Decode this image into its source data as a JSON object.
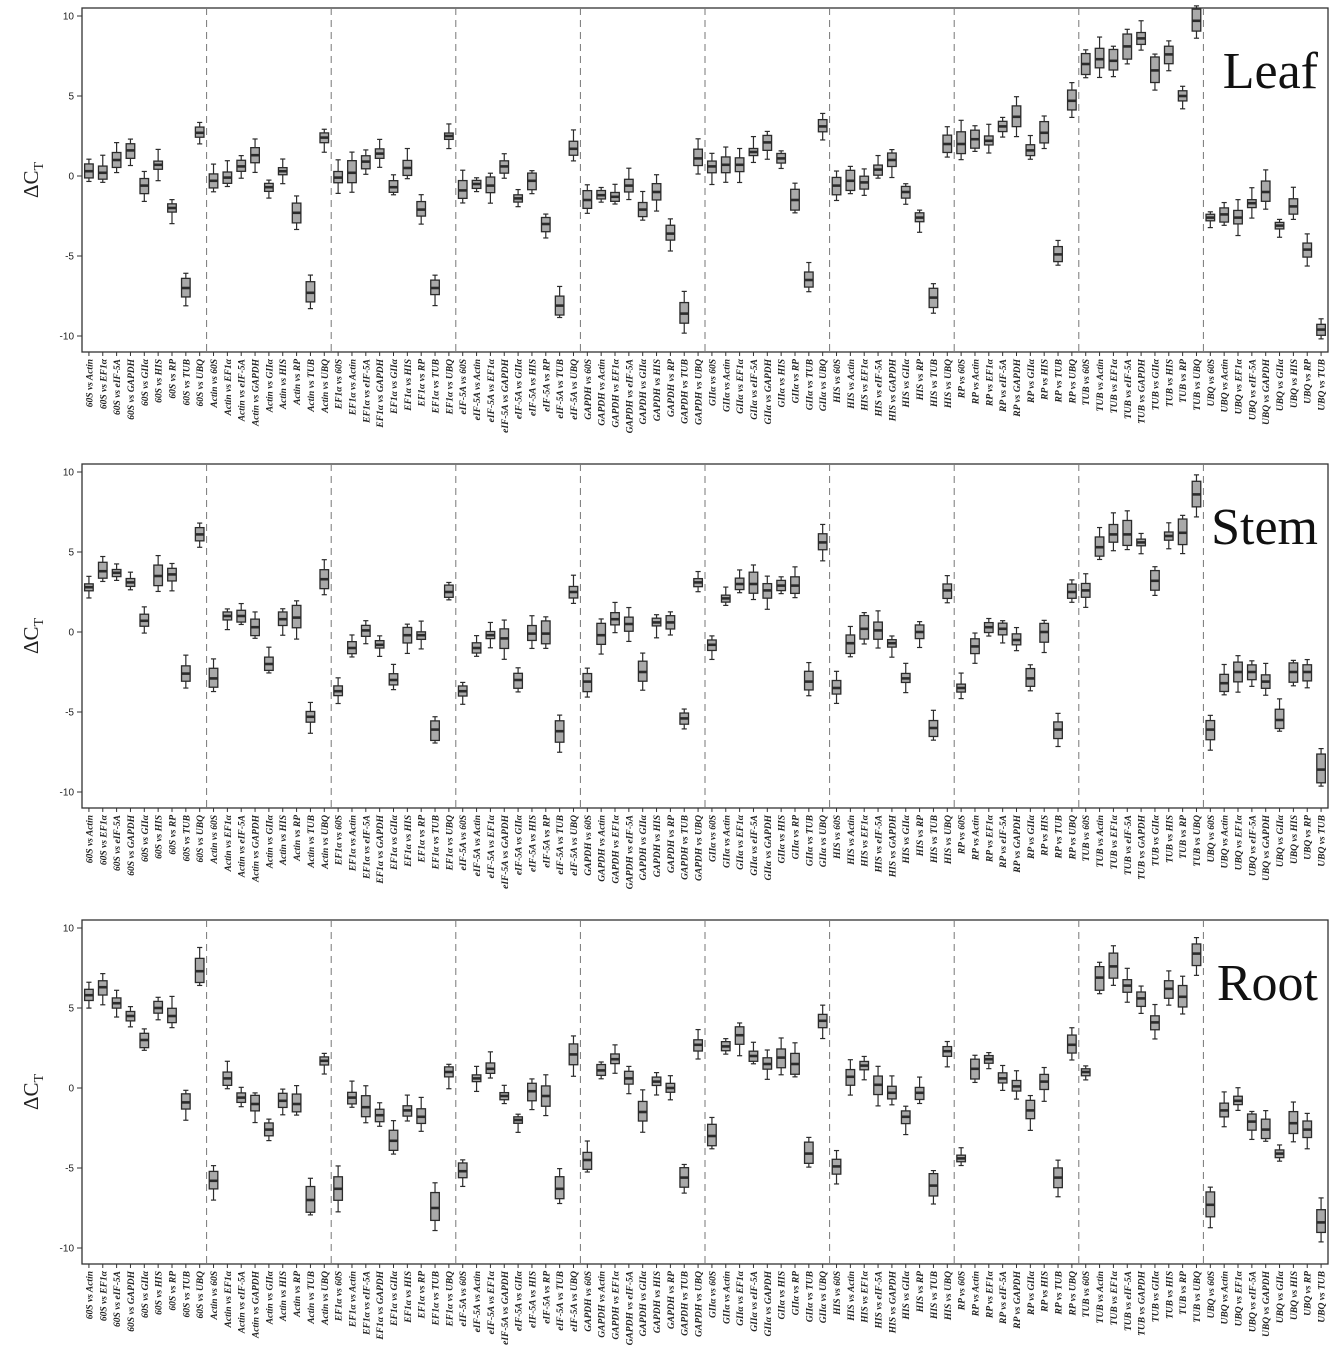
{
  "chart_data": {
    "type": "box",
    "ylabel": "ΔCT",
    "ylim": [
      -11,
      10.5
    ],
    "yticks": [
      10,
      5,
      0,
      -5,
      -10
    ],
    "groups": [
      "60S",
      "Actin",
      "EF1α",
      "eIF-5A",
      "GAPDH",
      "GIIα",
      "HIS",
      "RP",
      "TUB",
      "UBQ"
    ],
    "categories": [
      "60S vs Actin",
      "60S vs EF1α",
      "60S vs eIF-5A",
      "60S vs GAPDH",
      "60S vs GIIα",
      "60S vs HIS",
      "60S vs RP",
      "60S vs TUB",
      "60S vs UBQ",
      "Actin vs 60S",
      "Actin vs EF1α",
      "Actin vs eIF-5A",
      "Actin vs GAPDH",
      "Actin vs GIIα",
      "Actin vs HIS",
      "Actin vs RP",
      "Actin vs TUB",
      "Actin vs UBQ",
      "EF1α vs 60S",
      "EF1α vs Actin",
      "EF1α vs eIF-5A",
      "EF1α vs GAPDH",
      "EF1α vs GIIα",
      "EF1α vs HIS",
      "EF1α vs RP",
      "EF1α vs TUB",
      "EF1α vs UBQ",
      "eIF-5A vs 60S",
      "eIF-5A vs Actin",
      "eIF-5A vs EF1α",
      "eIF-5A vs GAPDH",
      "eIF-5A vs GIIα",
      "eIF-5A vs HIS",
      "eIF-5A vs RP",
      "eIF-5A vs TUB",
      "eIF-5A vs UBQ",
      "GAPDH vs 60S",
      "GAPDH vs Actin",
      "GAPDH vs EF1α",
      "GAPDH vs eIF-5A",
      "GAPDH vs GIIα",
      "GAPDH vs HIS",
      "GAPDH vs RP",
      "GAPDH vs TUB",
      "GAPDH vs UBQ",
      "GIIα vs 60S",
      "GIIα vs Actin",
      "GIIα vs EF1α",
      "GIIα vs eIF-5A",
      "GIIα vs GAPDH",
      "GIIα vs HIS",
      "GIIα vs RP",
      "GIIα vs TUB",
      "GIIα vs UBQ",
      "HIS vs 60S",
      "HIS vs Actin",
      "HIS vs EF1α",
      "HIS vs eIF-5A",
      "HIS vs GAPDH",
      "HIS vs GIIα",
      "HIS vs RP",
      "HIS vs TUB",
      "HIS vs UBQ",
      "RP vs 60S",
      "RP vs Actin",
      "RP vs EF1α",
      "RP vs eIF-5A",
      "RP vs GAPDH",
      "RP vs GIIα",
      "RP vs HIS",
      "RP vs TUB",
      "RP vs UBQ",
      "TUB vs 60S",
      "TUB vs Actin",
      "TUB vs EF1α",
      "TUB vs eIF-5A",
      "TUB vs GAPDH",
      "TUB vs GIIα",
      "TUB vs HIS",
      "TUB vs RP",
      "TUB vs UBQ",
      "UBQ vs 60S",
      "UBQ vs Actin",
      "UBQ vs EF1α",
      "UBQ vs eIF-5A",
      "UBQ vs GAPDH",
      "UBQ vs GIIα",
      "UBQ vs HIS",
      "UBQ vs RP",
      "UBQ vs TUB"
    ],
    "panels": [
      {
        "tissue": "Leaf",
        "medians": [
          0.3,
          0.2,
          1.0,
          1.6,
          -0.6,
          0.7,
          -2.0,
          -7.0,
          2.7,
          -0.3,
          -0.1,
          0.6,
          1.3,
          -0.7,
          0.3,
          -2.3,
          -7.3,
          2.4,
          -0.1,
          0.2,
          0.9,
          1.4,
          -0.7,
          0.5,
          -2.1,
          -7.0,
          2.5,
          -0.9,
          -0.5,
          -0.6,
          0.6,
          -1.4,
          -0.3,
          -3.0,
          -8.1,
          1.7,
          -1.5,
          -1.2,
          -1.3,
          -0.6,
          -2.1,
          -1.0,
          -3.6,
          -8.6,
          1.1,
          0.6,
          0.7,
          0.7,
          1.5,
          2.1,
          1.1,
          -1.5,
          -6.5,
          3.1,
          -0.6,
          -0.3,
          -0.4,
          0.4,
          1.0,
          -1.0,
          -2.6,
          -7.6,
          2.0,
          2.0,
          2.3,
          2.2,
          3.1,
          3.7,
          1.6,
          2.7,
          -4.9,
          4.7,
          7.0,
          7.3,
          7.2,
          8.1,
          8.6,
          6.6,
          7.6,
          5.0,
          9.7,
          -2.6,
          -2.4,
          -2.6,
          -1.7,
          -1.0,
          -3.1,
          -1.9,
          -4.6,
          -9.6
        ]
      },
      {
        "tissue": "Stem",
        "medians": [
          2.8,
          3.8,
          3.7,
          3.1,
          0.7,
          3.5,
          3.6,
          -2.6,
          6.1,
          -2.9,
          1.0,
          1.0,
          0.3,
          -2.0,
          0.8,
          0.9,
          -5.3,
          3.3,
          -3.7,
          -1.0,
          0.1,
          -0.8,
          -3.0,
          -0.2,
          -0.2,
          -6.1,
          2.5,
          -3.7,
          -1.0,
          -0.2,
          -0.4,
          -3.0,
          -0.1,
          -0.1,
          -6.2,
          2.5,
          -3.1,
          -0.2,
          0.8,
          0.5,
          -2.5,
          0.6,
          0.6,
          -5.4,
          3.1,
          -0.8,
          2.1,
          3.0,
          3.0,
          2.6,
          2.9,
          2.9,
          -3.1,
          5.6,
          -3.5,
          -0.7,
          0.2,
          0.1,
          -0.7,
          -2.9,
          0.0,
          -6.0,
          2.6,
          -3.5,
          -0.9,
          0.3,
          0.2,
          -0.5,
          -2.9,
          0.0,
          -6.1,
          2.5,
          2.6,
          5.3,
          6.1,
          6.1,
          5.6,
          3.2,
          6.0,
          6.2,
          8.6,
          -6.1,
          -3.2,
          -2.5,
          -2.5,
          -3.1,
          -5.5,
          -2.5,
          -2.5,
          -8.6
        ]
      },
      {
        "tissue": "Root",
        "medians": [
          5.8,
          6.3,
          5.3,
          4.5,
          3.0,
          5.0,
          4.5,
          -0.9,
          7.3,
          -5.8,
          0.6,
          -0.6,
          -1.0,
          -2.6,
          -0.8,
          -1.0,
          -7.0,
          1.7,
          -6.3,
          -0.6,
          -1.2,
          -1.7,
          -3.3,
          -1.4,
          -1.8,
          -7.5,
          1.0,
          -5.2,
          0.6,
          1.2,
          -0.5,
          -2.0,
          -0.2,
          -0.5,
          -6.3,
          2.1,
          -4.5,
          1.1,
          1.8,
          0.6,
          -1.5,
          0.4,
          0.0,
          -5.6,
          2.7,
          -3.0,
          2.6,
          3.3,
          2.0,
          1.5,
          1.9,
          1.5,
          -4.1,
          4.2,
          -4.9,
          0.7,
          1.4,
          0.2,
          -0.3,
          -1.8,
          -0.3,
          -6.1,
          2.3,
          -4.4,
          1.2,
          1.8,
          0.6,
          0.1,
          -1.4,
          0.4,
          -5.6,
          2.7,
          1.0,
          6.9,
          7.6,
          6.4,
          5.6,
          4.1,
          6.2,
          5.7,
          8.4,
          -7.3,
          -1.4,
          -0.8,
          -2.1,
          -2.6,
          -4.1,
          -2.2,
          -2.6,
          -8.4
        ]
      }
    ]
  }
}
